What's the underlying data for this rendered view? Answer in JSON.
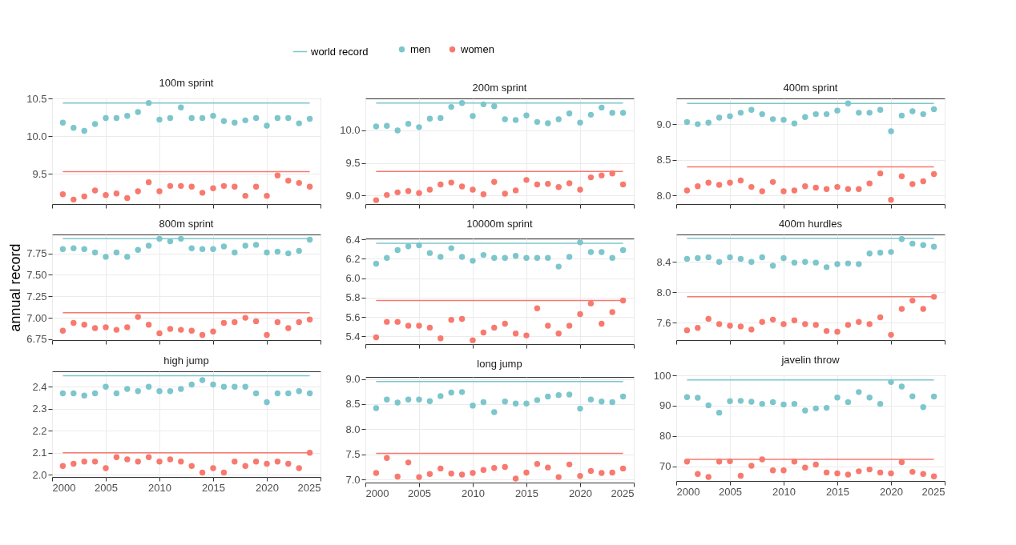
{
  "chart_data": [
    {
      "type": "scatter",
      "title": "100m sprint",
      "legend": "top",
      "marker": "circle",
      "grid": true,
      "tick_labels": "y",
      "x": [
        2001,
        2002,
        2003,
        2004,
        2005,
        2006,
        2007,
        2008,
        2009,
        2010,
        2011,
        2012,
        2013,
        2014,
        2015,
        2016,
        2017,
        2018,
        2019,
        2020,
        2021,
        2022,
        2023,
        2024
      ],
      "xlim": [
        2000,
        2025
      ],
      "xticks": [
        2000,
        2005,
        2010,
        2015,
        2020,
        2025
      ],
      "ylim": [
        9.1,
        10.5
      ],
      "yticks": [
        9.5,
        {
          "value": 10,
          "label": "10.0"
        },
        10.5
      ],
      "series": [
        {
          "name": "men",
          "color": "#7cc6cc",
          "values": [
            10.18,
            10.11,
            10.07,
            10.16,
            10.24,
            10.24,
            10.27,
            10.32,
            10.44,
            10.22,
            10.24,
            10.38,
            10.24,
            10.24,
            10.27,
            10.2,
            10.18,
            10.21,
            10.24,
            10.14,
            10.24,
            10.24,
            10.17,
            10.23
          ]
        },
        {
          "name": "women",
          "color": "#f8796e",
          "values": [
            9.23,
            9.16,
            9.2,
            9.28,
            9.22,
            9.24,
            9.18,
            9.27,
            9.39,
            9.27,
            9.34,
            9.34,
            9.33,
            9.25,
            9.31,
            9.34,
            9.33,
            9.21,
            9.33,
            9.21,
            9.48,
            9.41,
            9.38,
            9.33
          ]
        }
      ],
      "ref_lines": [
        {
          "axis": "y",
          "value": 10.44,
          "color": "#7cc6cc",
          "label": "world record"
        },
        {
          "axis": "y",
          "value": 9.53,
          "color": "#f8796e"
        }
      ]
    },
    {
      "type": "scatter",
      "title": "200m sprint",
      "marker": "circle",
      "grid": true,
      "tick_labels": "y",
      "x": [
        2001,
        2002,
        2003,
        2004,
        2005,
        2006,
        2007,
        2008,
        2009,
        2010,
        2011,
        2012,
        2013,
        2014,
        2015,
        2016,
        2017,
        2018,
        2019,
        2020,
        2021,
        2022,
        2023,
        2024
      ],
      "xlim": [
        2000,
        2025
      ],
      "xticks": [
        2000,
        2005,
        2010,
        2015,
        2020,
        2025
      ],
      "ylim": [
        8.87,
        10.49
      ],
      "yticks": [
        {
          "value": 9,
          "label": "9.0"
        },
        9.5,
        {
          "value": 10,
          "label": "10.0"
        }
      ],
      "series": [
        {
          "color": "#7cc6cc",
          "values": [
            10.06,
            10.07,
            10.0,
            10.1,
            10.05,
            10.18,
            10.19,
            10.36,
            10.42,
            10.22,
            10.4,
            10.37,
            10.17,
            10.16,
            10.23,
            10.13,
            10.11,
            10.17,
            10.26,
            10.12,
            10.24,
            10.35,
            10.27,
            10.27
          ]
        },
        {
          "color": "#f8796e",
          "values": [
            8.93,
            9.01,
            9.05,
            9.07,
            9.04,
            9.09,
            9.17,
            9.2,
            9.14,
            9.09,
            9.02,
            9.21,
            9.03,
            9.08,
            9.24,
            9.17,
            9.18,
            9.13,
            9.19,
            9.09,
            9.28,
            9.31,
            9.34,
            9.17
          ]
        }
      ],
      "ref_lines": [
        {
          "axis": "y",
          "value": 10.42,
          "color": "#7cc6cc"
        },
        {
          "axis": "y",
          "value": 9.37,
          "color": "#f8796e"
        }
      ]
    },
    {
      "type": "scatter",
      "title": "400m sprint",
      "marker": "circle",
      "grid": true,
      "tick_labels": "y",
      "x": [
        2001,
        2002,
        2003,
        2004,
        2005,
        2006,
        2007,
        2008,
        2009,
        2010,
        2011,
        2012,
        2013,
        2014,
        2015,
        2016,
        2017,
        2018,
        2019,
        2020,
        2021,
        2022,
        2023,
        2024
      ],
      "xlim": [
        2000,
        2025
      ],
      "xticks": [
        2000,
        2005,
        2010,
        2015,
        2020,
        2025
      ],
      "ylim": [
        7.88,
        9.36
      ],
      "yticks": [
        {
          "value": 8,
          "label": "8.0"
        },
        8.5,
        {
          "value": 9,
          "label": "9.0"
        }
      ],
      "series": [
        {
          "color": "#7cc6cc",
          "values": [
            9.03,
            9.0,
            9.02,
            9.09,
            9.11,
            9.16,
            9.2,
            9.14,
            9.07,
            9.06,
            9.01,
            9.1,
            9.14,
            9.14,
            9.19,
            9.29,
            9.16,
            9.16,
            9.2,
            8.9,
            9.12,
            9.18,
            9.14,
            9.21
          ]
        },
        {
          "color": "#f8796e",
          "values": [
            8.07,
            8.13,
            8.18,
            8.15,
            8.18,
            8.21,
            8.12,
            8.06,
            8.19,
            8.06,
            8.07,
            8.13,
            8.11,
            8.09,
            8.12,
            8.09,
            8.09,
            8.17,
            8.31,
            7.94,
            8.27,
            8.16,
            8.2,
            8.3
          ]
        }
      ],
      "ref_lines": [
        {
          "axis": "y",
          "value": 9.29,
          "color": "#7cc6cc"
        },
        {
          "axis": "y",
          "value": 8.4,
          "color": "#f8796e"
        }
      ]
    },
    {
      "type": "scatter",
      "title": "800m sprint",
      "ylabel": "annual record",
      "marker": "circle",
      "grid": true,
      "tick_labels": "y",
      "x": [
        2001,
        2002,
        2003,
        2004,
        2005,
        2006,
        2007,
        2008,
        2009,
        2010,
        2011,
        2012,
        2013,
        2014,
        2015,
        2016,
        2017,
        2018,
        2019,
        2020,
        2021,
        2022,
        2023,
        2024
      ],
      "xlim": [
        2000,
        2025
      ],
      "xticks": [
        2000,
        2005,
        2010,
        2015,
        2020,
        2025
      ],
      "ylim": [
        6.74,
        7.97
      ],
      "yticks": [
        6.75,
        {
          "value": 7,
          "label": "7.00"
        },
        7.25,
        {
          "value": 7.5,
          "label": "7.50"
        },
        7.75
      ],
      "series": [
        {
          "color": "#7cc6cc",
          "values": [
            7.8,
            7.81,
            7.8,
            7.76,
            7.71,
            7.76,
            7.71,
            7.79,
            7.84,
            7.92,
            7.89,
            7.92,
            7.81,
            7.8,
            7.8,
            7.83,
            7.76,
            7.84,
            7.85,
            7.76,
            7.77,
            7.75,
            7.78,
            7.91
          ]
        },
        {
          "color": "#f8796e",
          "values": [
            6.85,
            6.94,
            6.92,
            6.88,
            6.89,
            6.86,
            6.89,
            7.01,
            6.92,
            6.82,
            6.87,
            6.86,
            6.85,
            6.8,
            6.84,
            6.94,
            6.95,
            7.0,
            6.96,
            6.8,
            6.95,
            6.88,
            6.95,
            6.98
          ]
        }
      ],
      "ref_lines": [
        {
          "axis": "y",
          "value": 7.92,
          "color": "#7cc6cc"
        },
        {
          "axis": "y",
          "value": 7.06,
          "color": "#f8796e"
        }
      ]
    },
    {
      "type": "scatter",
      "title": "10000m sprint",
      "marker": "circle",
      "grid": true,
      "tick_labels": "y",
      "x": [
        2001,
        2002,
        2003,
        2004,
        2005,
        2006,
        2007,
        2008,
        2009,
        2010,
        2011,
        2012,
        2013,
        2014,
        2015,
        2016,
        2017,
        2018,
        2019,
        2020,
        2021,
        2022,
        2023,
        2024
      ],
      "xlim": [
        2000,
        2025
      ],
      "xticks": [
        2000,
        2005,
        2010,
        2015,
        2020,
        2025
      ],
      "ylim": [
        5.32,
        6.41
      ],
      "yticks": [
        5.4,
        5.6,
        5.8,
        {
          "value": 6,
          "label": "6.0"
        },
        6.2,
        6.4
      ],
      "series": [
        {
          "color": "#7cc6cc",
          "values": [
            6.15,
            6.21,
            6.29,
            6.33,
            6.34,
            6.26,
            6.22,
            6.31,
            6.22,
            6.18,
            6.24,
            6.21,
            6.21,
            6.23,
            6.21,
            6.21,
            6.21,
            6.12,
            6.22,
            6.37,
            6.27,
            6.27,
            6.21,
            6.29
          ]
        },
        {
          "color": "#f8796e",
          "values": [
            5.39,
            5.55,
            5.55,
            5.51,
            5.51,
            5.49,
            5.38,
            5.57,
            5.58,
            5.36,
            5.44,
            5.49,
            5.53,
            5.43,
            5.41,
            5.69,
            5.51,
            5.43,
            5.51,
            5.63,
            5.74,
            5.53,
            5.65,
            5.77
          ]
        }
      ],
      "ref_lines": [
        {
          "axis": "y",
          "value": 6.36,
          "color": "#7cc6cc"
        },
        {
          "axis": "y",
          "value": 5.77,
          "color": "#f8796e"
        }
      ]
    },
    {
      "type": "scatter",
      "title": "400m hurdles",
      "marker": "circle",
      "grid": true,
      "tick_labels": "y",
      "x": [
        2001,
        2002,
        2003,
        2004,
        2005,
        2006,
        2007,
        2008,
        2009,
        2010,
        2011,
        2012,
        2013,
        2014,
        2015,
        2016,
        2017,
        2018,
        2019,
        2020,
        2021,
        2022,
        2023,
        2024
      ],
      "xlim": [
        2000,
        2025
      ],
      "xticks": [
        2000,
        2005,
        2010,
        2015,
        2020,
        2025
      ],
      "ylim": [
        7.37,
        8.76
      ],
      "yticks": [
        7.6,
        {
          "value": 8,
          "label": "8.0"
        },
        8.4
      ],
      "series": [
        {
          "color": "#7cc6cc",
          "values": [
            8.44,
            8.45,
            8.46,
            8.4,
            8.46,
            8.44,
            8.4,
            8.46,
            8.35,
            8.45,
            8.39,
            8.4,
            8.39,
            8.33,
            8.37,
            8.38,
            8.37,
            8.51,
            8.52,
            8.53,
            8.7,
            8.64,
            8.62,
            8.6
          ]
        },
        {
          "color": "#f8796e",
          "values": [
            7.5,
            7.53,
            7.65,
            7.58,
            7.56,
            7.55,
            7.51,
            7.61,
            7.64,
            7.58,
            7.63,
            7.58,
            7.57,
            7.49,
            7.48,
            7.57,
            7.61,
            7.58,
            7.67,
            7.44,
            7.78,
            7.89,
            7.78,
            7.94
          ]
        }
      ],
      "ref_lines": [
        {
          "axis": "y",
          "value": 8.71,
          "color": "#7cc6cc"
        },
        {
          "axis": "y",
          "value": 7.94,
          "color": "#f8796e"
        }
      ]
    },
    {
      "type": "scatter",
      "title": "high jump",
      "marker": "circle",
      "grid": true,
      "x": [
        2001,
        2002,
        2003,
        2004,
        2005,
        2006,
        2007,
        2008,
        2009,
        2010,
        2011,
        2012,
        2013,
        2014,
        2015,
        2016,
        2017,
        2018,
        2019,
        2020,
        2021,
        2022,
        2023,
        2024
      ],
      "xlim": [
        2000,
        2025
      ],
      "xticks": [
        2000,
        2005,
        2010,
        2015,
        2020,
        2025
      ],
      "ylim": [
        1.99,
        2.47
      ],
      "yticks": [
        {
          "value": 2,
          "label": "2.0"
        },
        2.1,
        2.2,
        2.3,
        2.4
      ],
      "series": [
        {
          "color": "#7cc6cc",
          "values": [
            2.37,
            2.37,
            2.36,
            2.37,
            2.4,
            2.37,
            2.39,
            2.38,
            2.4,
            2.38,
            2.38,
            2.39,
            2.41,
            2.43,
            2.41,
            2.4,
            2.4,
            2.4,
            2.37,
            2.33,
            2.37,
            2.37,
            2.38,
            2.37
          ]
        },
        {
          "color": "#f8796e",
          "values": [
            2.04,
            2.05,
            2.06,
            2.06,
            2.03,
            2.08,
            2.07,
            2.06,
            2.08,
            2.06,
            2.07,
            2.06,
            2.04,
            2.01,
            2.03,
            2.01,
            2.06,
            2.04,
            2.06,
            2.05,
            2.06,
            2.05,
            2.03,
            2.1
          ]
        }
      ],
      "ref_lines": [
        {
          "axis": "y",
          "value": 2.45,
          "color": "#7cc6cc"
        },
        {
          "axis": "y",
          "value": 2.1,
          "color": "#f8796e"
        }
      ]
    },
    {
      "type": "scatter",
      "title": "long jump",
      "marker": "circle",
      "grid": true,
      "x": [
        2001,
        2002,
        2003,
        2004,
        2005,
        2006,
        2007,
        2008,
        2009,
        2010,
        2011,
        2012,
        2013,
        2014,
        2015,
        2016,
        2017,
        2018,
        2019,
        2020,
        2021,
        2022,
        2023,
        2024
      ],
      "xlim": [
        2000,
        2025
      ],
      "xticks": [
        2000,
        2005,
        2010,
        2015,
        2020,
        2025
      ],
      "ylim": [
        6.94,
        9.04
      ],
      "yticks": [
        {
          "value": 7,
          "label": "7.0"
        },
        7.5,
        {
          "value": 8,
          "label": "8.0"
        },
        8.5,
        {
          "value": 9,
          "label": "9.0"
        }
      ],
      "series": [
        {
          "color": "#7cc6cc",
          "values": [
            8.42,
            8.59,
            8.53,
            8.59,
            8.59,
            8.56,
            8.66,
            8.73,
            8.74,
            8.47,
            8.54,
            8.34,
            8.55,
            8.51,
            8.51,
            8.58,
            8.65,
            8.68,
            8.69,
            8.41,
            8.59,
            8.55,
            8.54,
            8.65
          ]
        },
        {
          "color": "#f8796e",
          "values": [
            7.13,
            7.43,
            7.06,
            7.34,
            7.05,
            7.11,
            7.22,
            7.12,
            7.1,
            7.13,
            7.19,
            7.23,
            7.25,
            7.02,
            7.14,
            7.31,
            7.24,
            7.05,
            7.3,
            7.07,
            7.17,
            7.13,
            7.14,
            7.22
          ]
        }
      ],
      "ref_lines": [
        {
          "axis": "y",
          "value": 8.95,
          "color": "#7cc6cc"
        },
        {
          "axis": "y",
          "value": 7.52,
          "color": "#f8796e"
        }
      ]
    },
    {
      "type": "scatter",
      "title": "javelin throw",
      "marker": "circle",
      "grid": true,
      "x": [
        2001,
        2002,
        2003,
        2004,
        2005,
        2006,
        2007,
        2008,
        2009,
        2010,
        2011,
        2012,
        2013,
        2014,
        2015,
        2016,
        2017,
        2018,
        2019,
        2020,
        2021,
        2022,
        2023,
        2024
      ],
      "xlim": [
        2000,
        2025
      ],
      "xticks": [
        2000,
        2005,
        2010,
        2015,
        2020,
        2025
      ],
      "ylim": [
        65.2,
        100
      ],
      "yticks": [
        70,
        80,
        90,
        100
      ],
      "series": [
        {
          "color": "#7cc6cc",
          "values": [
            92.8,
            92.6,
            90.1,
            87.7,
            91.5,
            91.6,
            91.3,
            90.6,
            91.2,
            90.4,
            90.6,
            88.4,
            89.1,
            89.3,
            92.7,
            91.2,
            94.5,
            92.7,
            90.6,
            97.8,
            96.3,
            93.1,
            89.5,
            93.0
          ]
        },
        {
          "color": "#f8796e",
          "values": [
            71.6,
            67.5,
            66.5,
            71.6,
            71.7,
            66.9,
            70.2,
            72.3,
            68.7,
            68.7,
            71.6,
            69.6,
            70.6,
            68.0,
            67.7,
            67.3,
            68.4,
            69.0,
            68.0,
            67.7,
            71.4,
            68.2,
            67.5,
            66.7
          ]
        }
      ],
      "ref_lines": [
        {
          "axis": "y",
          "value": 98.5,
          "color": "#7cc6cc"
        },
        {
          "axis": "y",
          "value": 72.3,
          "color": "#f8796e"
        }
      ]
    }
  ]
}
